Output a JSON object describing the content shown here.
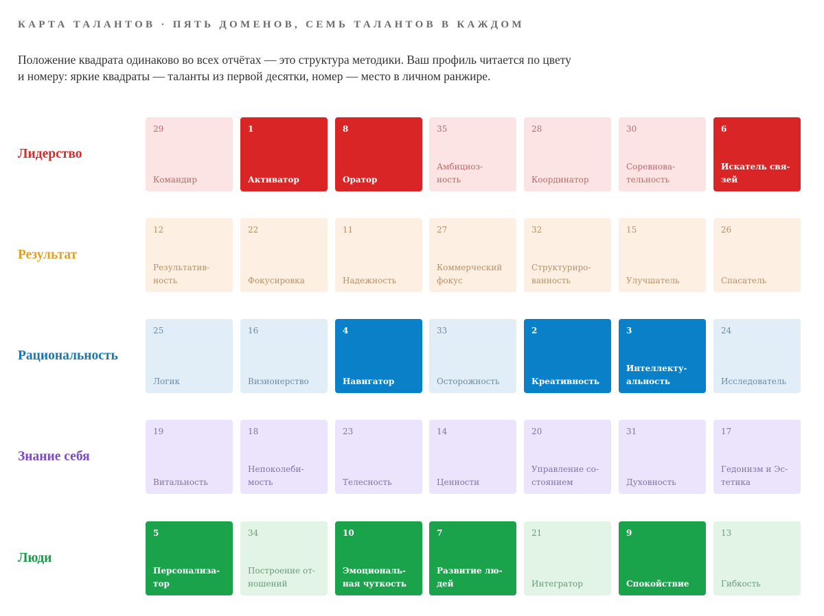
{
  "header": {
    "title": "КАРТА ТАЛАНТОВ · ПЯТЬ ДОМЕНОВ, СЕМЬ ТАЛАНТОВ В КАЖДОМ",
    "intro_line1": "Положение квадрата одинаково во всех отчётах — это структура методики. Ваш профиль читается по цвету",
    "intro_line2": "и номеру: яркие квадраты — таланты из первой десятки, номер — место в личном ранжире."
  },
  "domains": [
    {
      "name": "Лидерство",
      "color": "#d42a2a",
      "bright": "#d92526",
      "light": "#fde4e4",
      "light_text": "#b96a6a",
      "talents": [
        {
          "rank": "29",
          "name": "Командир",
          "top": false
        },
        {
          "rank": "1",
          "name": "Активатор",
          "top": true
        },
        {
          "rank": "8",
          "name": "Оратор",
          "top": true
        },
        {
          "rank": "35",
          "name": "Амбициоз-\nность",
          "top": false
        },
        {
          "rank": "28",
          "name": "Координатор",
          "top": false
        },
        {
          "rank": "30",
          "name": "Соревнова-\nтельность",
          "top": false
        },
        {
          "rank": "6",
          "name": "Искатель свя-\nзей",
          "top": true
        }
      ]
    },
    {
      "name": "Результат",
      "color": "#e2a02a",
      "bright": "#e2a02a",
      "light": "#fdf0e3",
      "light_text": "#b98f66",
      "talents": [
        {
          "rank": "12",
          "name": "Результатив-\nность",
          "top": false
        },
        {
          "rank": "22",
          "name": "Фокусировка",
          "top": false
        },
        {
          "rank": "11",
          "name": "Надежность",
          "top": false
        },
        {
          "rank": "27",
          "name": "Коммерческий\nфокус",
          "top": false
        },
        {
          "rank": "32",
          "name": "Структуриро-\nванность",
          "top": false
        },
        {
          "rank": "15",
          "name": "Улучшатель",
          "top": false
        },
        {
          "rank": "26",
          "name": "Спасатель",
          "top": false
        }
      ]
    },
    {
      "name": "Рациональность",
      "color": "#1a78b0",
      "bright": "#0a80c8",
      "light": "#e1eef8",
      "light_text": "#6c8aa4",
      "talents": [
        {
          "rank": "25",
          "name": "Логик",
          "top": false
        },
        {
          "rank": "16",
          "name": "Визионерство",
          "top": false
        },
        {
          "rank": "4",
          "name": "Навигатор",
          "top": true
        },
        {
          "rank": "33",
          "name": "Осторожность",
          "top": false
        },
        {
          "rank": "2",
          "name": "Креативность",
          "top": true
        },
        {
          "rank": "3",
          "name": "Интеллекту-\nальность",
          "top": true
        },
        {
          "rank": "24",
          "name": "Исследователь",
          "top": false
        }
      ]
    },
    {
      "name": "Знание себя",
      "color": "#7b4bc7",
      "bright": "#7b4bc7",
      "light": "#ebe4fc",
      "light_text": "#7f74a8",
      "talents": [
        {
          "rank": "19",
          "name": "Витальность",
          "top": false
        },
        {
          "rank": "18",
          "name": "Непоколеби-\nмость",
          "top": false
        },
        {
          "rank": "23",
          "name": "Телесность",
          "top": false
        },
        {
          "rank": "14",
          "name": "Ценности",
          "top": false
        },
        {
          "rank": "20",
          "name": "Управление со-\nстоянием",
          "top": false
        },
        {
          "rank": "31",
          "name": "Духовность",
          "top": false
        },
        {
          "rank": "17",
          "name": "Гедонизм и Эс-\nтетика",
          "top": false
        }
      ]
    },
    {
      "name": "Люди",
      "color": "#1c9a4a",
      "bright": "#1ba34c",
      "light": "#e2f4e6",
      "light_text": "#6b9a7a",
      "talents": [
        {
          "rank": "5",
          "name": "Персонализа-\nтор",
          "top": true
        },
        {
          "rank": "34",
          "name": "Построение от-\nношений",
          "top": false
        },
        {
          "rank": "10",
          "name": "Эмоциональ-\nная чуткость",
          "top": true
        },
        {
          "rank": "7",
          "name": "Развитие лю-\nдей",
          "top": true
        },
        {
          "rank": "21",
          "name": "Интегратор",
          "top": false
        },
        {
          "rank": "9",
          "name": "Спокойствие",
          "top": true
        },
        {
          "rank": "13",
          "name": "Гибкость",
          "top": false
        }
      ]
    }
  ]
}
